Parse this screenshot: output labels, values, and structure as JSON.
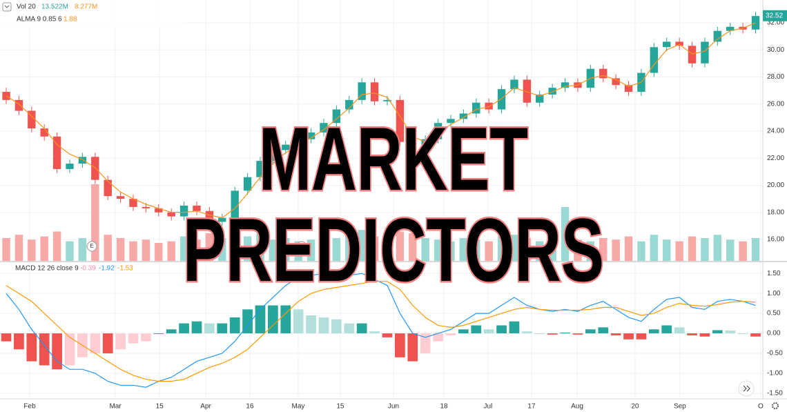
{
  "chart_data": {
    "type": "candlestick",
    "open": [
      26.9,
      26.3,
      25.5,
      24.2,
      23.6,
      21.2,
      21.6,
      22.1,
      20.4,
      19.2,
      19.0,
      18.4,
      18.3,
      18.0,
      17.7,
      18.5,
      18.1,
      17.3,
      17.6,
      19.6,
      20.6,
      21.8,
      22.6,
      23.0,
      23.4,
      23.9,
      24.6,
      25.6,
      26.3,
      27.6,
      26.2,
      26.3,
      23.2,
      22.3,
      23.4,
      24.6,
      24.9,
      25.3,
      26.1,
      25.6,
      27.1,
      27.8,
      26.1,
      26.7,
      27.2,
      27.6,
      27.2,
      28.6,
      27.9,
      27.4,
      26.9,
      28.3,
      30.2,
      30.6,
      30.3,
      29.0,
      30.6,
      31.4,
      31.7,
      31.5
    ],
    "high": [
      27.2,
      26.6,
      25.8,
      24.5,
      23.9,
      21.9,
      22.4,
      22.4,
      20.7,
      19.5,
      19.3,
      18.7,
      18.6,
      18.3,
      18.8,
      18.8,
      18.4,
      17.9,
      19.9,
      20.9,
      22.1,
      22.9,
      23.3,
      23.7,
      24.2,
      24.9,
      25.9,
      26.6,
      27.9,
      27.9,
      26.6,
      26.6,
      23.5,
      23.7,
      24.9,
      25.2,
      25.6,
      26.4,
      26.4,
      27.4,
      28.1,
      28.1,
      27.0,
      27.5,
      27.9,
      27.9,
      28.9,
      28.9,
      28.2,
      27.7,
      28.6,
      30.5,
      30.9,
      30.9,
      30.6,
      30.9,
      31.7,
      32.0,
      32.0,
      32.8
    ],
    "low": [
      26.0,
      25.2,
      23.9,
      23.3,
      20.9,
      20.9,
      21.3,
      20.1,
      18.9,
      18.7,
      18.1,
      18.0,
      17.7,
      17.4,
      17.4,
      17.8,
      17.0,
      17.0,
      17.3,
      19.3,
      20.3,
      21.5,
      22.3,
      22.7,
      23.1,
      23.6,
      24.3,
      25.3,
      26.0,
      25.9,
      25.9,
      22.9,
      22.0,
      22.0,
      23.1,
      24.3,
      24.6,
      25.0,
      25.3,
      25.3,
      26.8,
      25.8,
      25.8,
      26.4,
      26.9,
      26.9,
      26.9,
      27.6,
      27.1,
      26.6,
      26.6,
      28.0,
      29.9,
      30.0,
      28.7,
      28.7,
      30.3,
      31.1,
      31.2,
      31.2
    ],
    "close": [
      26.3,
      25.5,
      24.2,
      23.6,
      21.2,
      21.6,
      22.1,
      20.4,
      19.2,
      19.0,
      18.4,
      18.3,
      18.0,
      17.7,
      18.5,
      18.1,
      17.3,
      17.6,
      19.6,
      20.6,
      21.8,
      22.6,
      23.0,
      23.4,
      23.9,
      24.6,
      25.6,
      26.3,
      27.6,
      26.2,
      26.3,
      23.2,
      22.3,
      23.4,
      24.6,
      24.9,
      25.3,
      26.1,
      25.6,
      27.1,
      27.8,
      26.1,
      26.7,
      27.2,
      27.6,
      27.2,
      28.6,
      27.9,
      27.4,
      26.9,
      28.3,
      30.2,
      30.6,
      30.3,
      29.0,
      30.6,
      31.4,
      31.7,
      31.5,
      32.5
    ],
    "up_color": "#26a69a",
    "down_color": "#ef5350",
    "ylim": [
      14.42,
      33.68
    ],
    "yticks": [
      {
        "value": 16,
        "label": "16.00"
      },
      {
        "value": 18,
        "label": "18.00"
      },
      {
        "value": 20,
        "label": "20.00"
      },
      {
        "value": 22,
        "label": "22.00"
      },
      {
        "value": 24,
        "label": "24.00"
      },
      {
        "value": 26,
        "label": "26.00"
      },
      {
        "value": 28,
        "label": "28.00"
      },
      {
        "value": 30,
        "label": "30.00"
      },
      {
        "value": 32,
        "label": "32.00"
      }
    ],
    "last_price": 32.52,
    "xlim": [
      -0.49,
      59.57
    ],
    "xticks": [
      {
        "value": 1.85,
        "label": "Feb"
      },
      {
        "value": 8.59,
        "label": "Mar"
      },
      {
        "value": 12.07,
        "label": "15"
      },
      {
        "value": 15.71,
        "label": "Apr"
      },
      {
        "value": 19.18,
        "label": "16"
      },
      {
        "value": 22.99,
        "label": "May"
      },
      {
        "value": 26.3,
        "label": "15"
      },
      {
        "value": 30.49,
        "label": "Jun"
      },
      {
        "value": 34.46,
        "label": "18"
      },
      {
        "value": 37.93,
        "label": "Jul"
      },
      {
        "value": 41.36,
        "label": "17"
      },
      {
        "value": 44.95,
        "label": "Aug"
      },
      {
        "value": 49.51,
        "label": "20"
      },
      {
        "value": 53.04,
        "label": "Sep"
      },
      {
        "value": 59.4,
        "label": "O"
      }
    ],
    "grid": true,
    "events": [
      {
        "x": 6.74,
        "label": "E"
      },
      {
        "x": 23.26,
        "label": "E"
      }
    ],
    "volume": {
      "name": "Vol 20",
      "readouts": [
        {
          "value": 13.522,
          "label": "13.522M"
        },
        {
          "value": 8.277,
          "label": "8.277M"
        }
      ],
      "ylim": [
        0,
        160
      ],
      "up_color": "#9ad8d3",
      "down_color": "#f7a9a7",
      "values": [
        14,
        16,
        13,
        15,
        18,
        12,
        14,
        47,
        16,
        14,
        12,
        13,
        11,
        12,
        15,
        13,
        17,
        14,
        16,
        15,
        17,
        13,
        14,
        12,
        13,
        15,
        14,
        16,
        19,
        15,
        14,
        18,
        17,
        14,
        13,
        12,
        14,
        13,
        12,
        15,
        16,
        14,
        12,
        11,
        33,
        13,
        12,
        14,
        13,
        15,
        12,
        16,
        13,
        12,
        15,
        14,
        16,
        13,
        12,
        14
      ]
    },
    "alma": {
      "name": "ALMA 9 0.85 6",
      "readout": 1.88,
      "color": "#f7931a",
      "values": [
        26.6,
        26.0,
        25.1,
        24.2,
        23.0,
        22.3,
        21.9,
        21.3,
        20.3,
        19.5,
        19.0,
        18.6,
        18.3,
        18.0,
        18.0,
        18.1,
        17.8,
        17.6,
        18.3,
        19.4,
        20.6,
        21.6,
        22.4,
        23.0,
        23.5,
        24.1,
        24.9,
        25.7,
        26.7,
        26.8,
        26.5,
        25.1,
        23.6,
        23.2,
        23.8,
        24.5,
        25.0,
        25.6,
        25.8,
        26.4,
        27.2,
        26.9,
        26.6,
        26.9,
        27.3,
        27.4,
        27.9,
        28.1,
        27.8,
        27.3,
        27.6,
        28.9,
        30.0,
        30.4,
        29.7,
        29.9,
        30.8,
        31.4,
        31.6,
        32.0
      ]
    },
    "macd": {
      "name": "MACD 12 26 close 9",
      "readouts": [
        -0.39,
        -1.92,
        -1.53
      ],
      "ylim": [
        -1.64,
        1.78
      ],
      "yticks": [
        {
          "value": 1.5,
          "label": "1.50"
        },
        {
          "value": 1,
          "label": "1.00"
        },
        {
          "value": 0.5,
          "label": "0.50"
        },
        {
          "value": 0,
          "label": "0.00"
        },
        {
          "value": -0.5,
          "label": "-0.50"
        },
        {
          "value": -1,
          "label": "-1.00"
        },
        {
          "value": -1.5,
          "label": "-1.50"
        }
      ],
      "macd_color": "#2196f3",
      "signal_color": "#ff9800",
      "hist_colors": [
        "#26a69a",
        "#b2dfdb",
        "#ef5350",
        "#ffcdd2"
      ],
      "macd": [
        1.0,
        0.6,
        0.1,
        -0.3,
        -0.7,
        -0.9,
        -0.9,
        -1.0,
        -1.2,
        -1.3,
        -1.3,
        -1.35,
        -1.2,
        -1.1,
        -0.9,
        -0.7,
        -0.6,
        -0.5,
        -0.2,
        0.2,
        0.6,
        0.9,
        1.2,
        1.4,
        1.45,
        1.5,
        1.5,
        1.45,
        1.5,
        1.35,
        1.2,
        0.5,
        0.0,
        -0.1,
        0.0,
        0.1,
        0.3,
        0.5,
        0.5,
        0.7,
        0.9,
        0.7,
        0.6,
        0.55,
        0.6,
        0.55,
        0.7,
        0.8,
        0.6,
        0.4,
        0.3,
        0.6,
        0.85,
        0.9,
        0.65,
        0.6,
        0.8,
        0.85,
        0.8,
        0.7
      ],
      "signal": [
        1.2,
        1.0,
        0.8,
        0.5,
        0.2,
        -0.1,
        -0.3,
        -0.5,
        -0.7,
        -0.9,
        -1.05,
        -1.15,
        -1.2,
        -1.2,
        -1.15,
        -1.0,
        -0.85,
        -0.75,
        -0.6,
        -0.4,
        -0.1,
        0.2,
        0.5,
        0.8,
        1.0,
        1.1,
        1.15,
        1.2,
        1.25,
        1.3,
        1.3,
        1.1,
        0.7,
        0.4,
        0.2,
        0.15,
        0.2,
        0.3,
        0.4,
        0.5,
        0.6,
        0.65,
        0.6,
        0.58,
        0.58,
        0.58,
        0.6,
        0.65,
        0.65,
        0.55,
        0.45,
        0.5,
        0.65,
        0.75,
        0.7,
        0.68,
        0.72,
        0.78,
        0.8,
        0.78
      ],
      "histogram": [
        -0.2,
        -0.4,
        -0.7,
        -0.8,
        -0.9,
        -0.8,
        -0.6,
        -0.5,
        -0.5,
        -0.4,
        -0.25,
        -0.2,
        0.0,
        0.1,
        0.25,
        0.3,
        0.25,
        0.25,
        0.4,
        0.6,
        0.7,
        0.7,
        0.7,
        0.6,
        0.45,
        0.4,
        0.35,
        0.25,
        0.25,
        0.05,
        -0.1,
        -0.6,
        -0.7,
        -0.5,
        -0.2,
        -0.05,
        0.1,
        0.2,
        0.1,
        0.2,
        0.3,
        0.05,
        0.0,
        -0.03,
        0.02,
        -0.03,
        0.1,
        0.15,
        -0.05,
        -0.15,
        -0.15,
        0.1,
        0.2,
        0.15,
        -0.05,
        -0.08,
        0.08,
        0.07,
        0.0,
        -0.08
      ]
    }
  },
  "overlay": {
    "line1": "MARKET",
    "line2": "PREDICTORS"
  }
}
